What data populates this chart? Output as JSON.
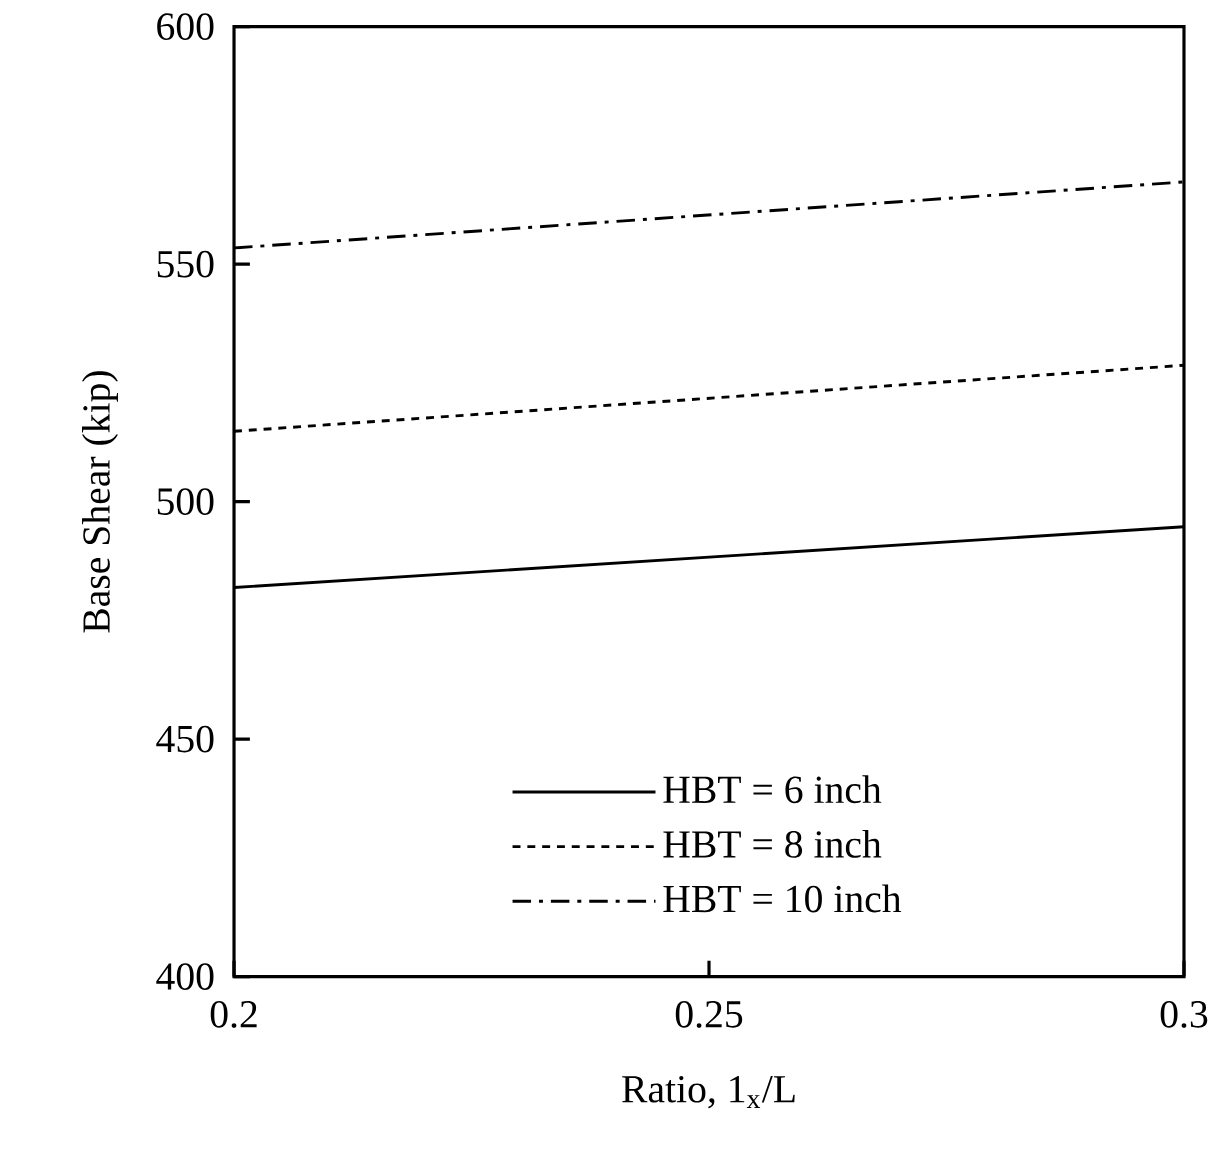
{
  "chart_data": {
    "type": "line",
    "xlabel": "Ratio, 1$_{x}$/L",
    "ylabel": "Base Shear (kip)",
    "x": [
      0.2,
      0.3
    ],
    "series": [
      {
        "name": "HBT = 6 inch",
        "color": "#000000",
        "line_style": "solid",
        "values": [
          481.9,
          494.7
        ]
      },
      {
        "name": "HBT = 8 inch",
        "color": "#000000",
        "line_style": "dotted",
        "values": [
          514.8,
          528.7
        ]
      },
      {
        "name": "HBT = 10 inch",
        "color": "#000000",
        "line_style": "dashdot",
        "values": [
          553.4,
          567.3
        ]
      }
    ],
    "xlim": [
      0.2,
      0.3
    ],
    "xticks": [
      0.2,
      0.25,
      0.3
    ],
    "ylim": [
      400,
      600
    ],
    "yticks": [
      400,
      450,
      500,
      550,
      600
    ],
    "grid": false,
    "legend": "bottom",
    "marker": "none"
  }
}
